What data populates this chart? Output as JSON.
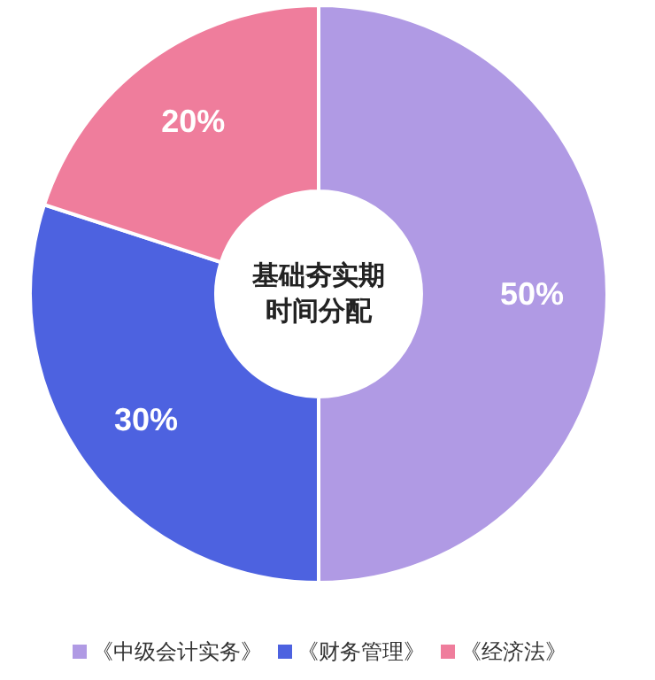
{
  "chart_data": {
    "type": "donut",
    "title": "基础夯实期",
    "subtitle": "时间分配",
    "categories": [
      "《中级会计实务》",
      "《财务管理》",
      "《经济法》"
    ],
    "values": [
      50,
      30,
      20
    ],
    "colors": [
      "#b09ae4",
      "#4d62e0",
      "#ef7d9c"
    ],
    "value_labels": [
      "50%",
      "30%",
      "20%"
    ],
    "legend": "bottom"
  }
}
